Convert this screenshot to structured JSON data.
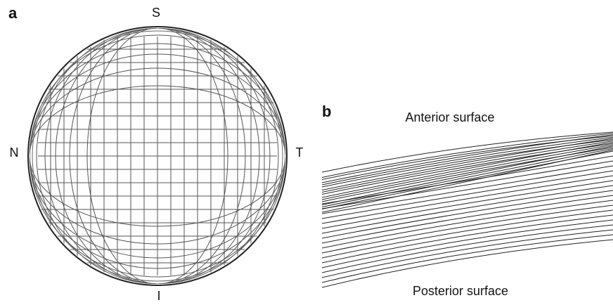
{
  "panel_a": {
    "label": "a",
    "directions": {
      "top": "S",
      "left": "N",
      "right": "T",
      "bottom": "I"
    }
  },
  "panel_b": {
    "label": "b",
    "top_label": "Anterior surface",
    "bottom_label": "Posterior surface"
  }
}
